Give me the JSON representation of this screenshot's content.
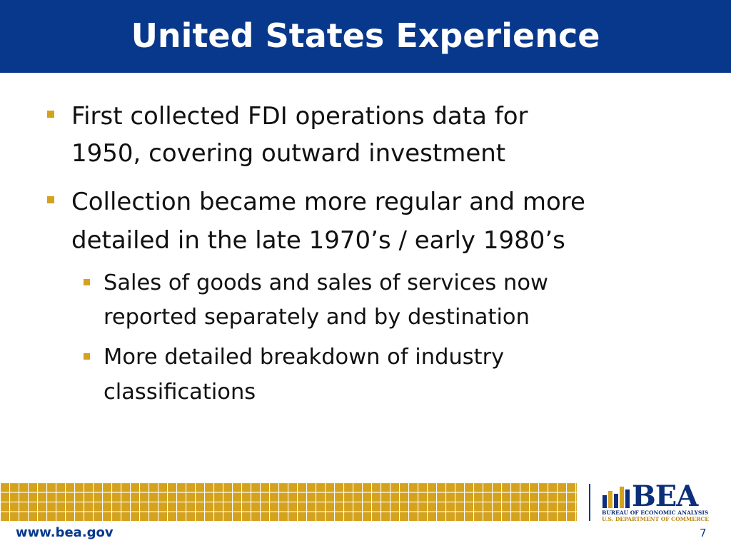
{
  "header": {
    "title": "United States Experience"
  },
  "bullets": [
    {
      "lines": [
        "First collected FDI operations data for",
        "1950, covering outward investment"
      ]
    },
    {
      "lines": [
        "Collection became more regular and more",
        "detailed in the late 1970’s / early 1980’s"
      ],
      "sub_bullets": [
        {
          "lines": [
            "Sales of goods and sales of services now",
            "reported separately and by destination"
          ]
        },
        {
          "lines": [
            "More detailed breakdown of industry",
            "classifications"
          ]
        }
      ]
    }
  ],
  "footer": {
    "url": "www.bea.gov",
    "page_number": "7",
    "logo": {
      "name": "BEA",
      "line1": "BUREAU OF ECONOMIC ANALYSIS",
      "line2": "U.S. DEPARTMENT OF COMMERCE"
    }
  }
}
